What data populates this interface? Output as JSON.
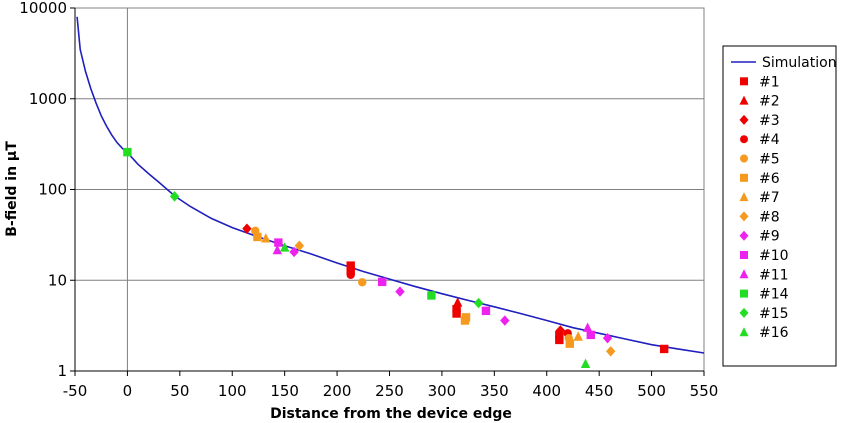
{
  "chart_data": {
    "type": "scatter",
    "xlabel": "Distance from the device edge",
    "ylabel": "B-field in µT",
    "xlim": [
      -50,
      550
    ],
    "ylim": [
      1,
      10000
    ],
    "yscale": "log",
    "grid": true,
    "legend_position": "right",
    "x_ticks": [
      "-50",
      "0",
      "50",
      "100",
      "150",
      "200",
      "250",
      "300",
      "350",
      "400",
      "450",
      "500",
      "550"
    ],
    "y_ticks": [
      "1",
      "10",
      "100",
      "1000",
      "10000"
    ],
    "series": [
      {
        "name": "Simulation",
        "kind": "line",
        "color": "#1f1fbf",
        "x": [
          -48,
          -45,
          -40,
          -35,
          -30,
          -25,
          -20,
          -15,
          -10,
          -5,
          0,
          10,
          20,
          30,
          45,
          60,
          80,
          100,
          115,
          125,
          150,
          175,
          200,
          225,
          250,
          275,
          300,
          325,
          350,
          375,
          400,
          425,
          450,
          475,
          500,
          525,
          550
        ],
        "y": [
          8000,
          3500,
          2000,
          1300,
          900,
          650,
          500,
          400,
          330,
          285,
          255,
          190,
          150,
          120,
          85,
          65,
          48,
          38,
          33,
          30,
          24,
          19.5,
          15.5,
          12.5,
          10.3,
          8.5,
          7.1,
          6.0,
          5.1,
          4.3,
          3.6,
          3.0,
          2.6,
          2.25,
          1.95,
          1.75,
          1.58
        ]
      },
      {
        "name": "#1",
        "marker": "square",
        "color": "#ee0000",
        "x": [
          213,
          213,
          314,
          314,
          412,
          412,
          512
        ],
        "y": [
          14.5,
          12.8,
          4.8,
          4.3,
          2.5,
          2.2,
          1.75
        ]
      },
      {
        "name": "#2",
        "marker": "triangle",
        "color": "#ee0000",
        "x": [
          315
        ],
        "y": [
          5.7
        ]
      },
      {
        "name": "#3",
        "marker": "diamond",
        "color": "#ee0000",
        "x": [
          114,
          413
        ],
        "y": [
          37,
          2.8
        ]
      },
      {
        "name": "#4",
        "marker": "circle",
        "color": "#ee0000",
        "x": [
          213,
          420
        ],
        "y": [
          11.5,
          2.6
        ]
      },
      {
        "name": "#5",
        "marker": "circle",
        "color": "#f59a1e",
        "x": [
          122,
          224,
          421
        ],
        "y": [
          35,
          9.5,
          2.3
        ]
      },
      {
        "name": "#6",
        "marker": "square",
        "color": "#f59a1e",
        "x": [
          124,
          323,
          322,
          422
        ],
        "y": [
          30,
          3.9,
          3.6,
          2.0
        ]
      },
      {
        "name": "#7",
        "marker": "triangle",
        "color": "#f59a1e",
        "x": [
          132,
          430
        ],
        "y": [
          29,
          2.4
        ]
      },
      {
        "name": "#8",
        "marker": "diamond",
        "color": "#f59a1e",
        "x": [
          164,
          461
        ],
        "y": [
          24,
          1.65
        ]
      },
      {
        "name": "#9",
        "marker": "diamond",
        "color": "#ee22ee",
        "x": [
          159,
          260,
          360,
          458
        ],
        "y": [
          20.5,
          7.5,
          3.6,
          2.3
        ]
      },
      {
        "name": "#10",
        "marker": "square",
        "color": "#ee22ee",
        "x": [
          144,
          243,
          342,
          442
        ],
        "y": [
          26,
          9.6,
          4.6,
          2.5
        ]
      },
      {
        "name": "#11",
        "marker": "triangle",
        "color": "#ee22ee",
        "x": [
          143,
          439
        ],
        "y": [
          21.5,
          3.0
        ]
      },
      {
        "name": "#14",
        "marker": "square",
        "color": "#22dd22",
        "x": [
          0,
          290
        ],
        "y": [
          258,
          6.8
        ]
      },
      {
        "name": "#15",
        "marker": "diamond",
        "color": "#22dd22",
        "x": [
          45,
          335
        ],
        "y": [
          84,
          5.6
        ]
      },
      {
        "name": "#16",
        "marker": "triangle",
        "color": "#22dd22",
        "x": [
          150,
          437
        ],
        "y": [
          23,
          1.2
        ]
      }
    ]
  }
}
